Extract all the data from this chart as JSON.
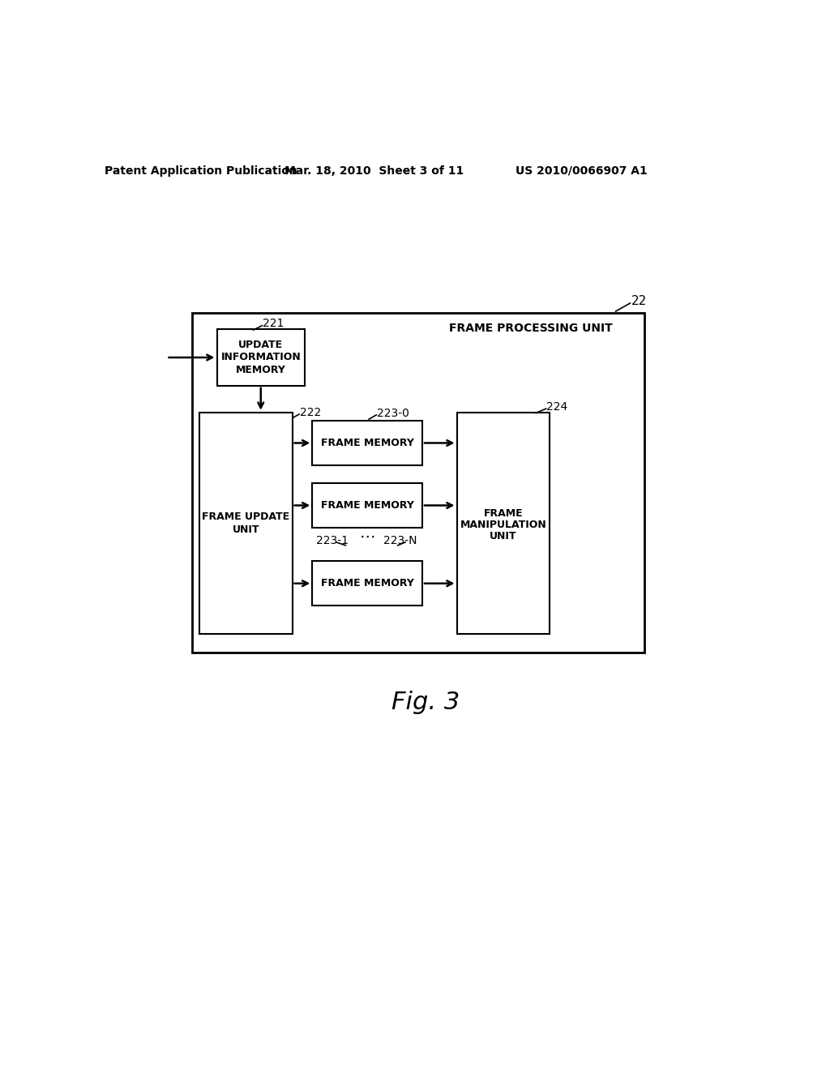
{
  "bg_color": "#ffffff",
  "header_left": "Patent Application Publication",
  "header_mid": "Mar. 18, 2010  Sheet 3 of 11",
  "header_right": "US 2010/0066907 A1",
  "fig_label": "Fig. 3",
  "outer_box_label": "FRAME PROCESSING UNIT",
  "ref_22": "22",
  "ref_221": "221",
  "ref_222": "222",
  "ref_223_0": "223-0",
  "ref_223_1": "223-1",
  "ref_223_N": "223-N",
  "ref_224": "224",
  "update_mem_lines": [
    "UPDATE",
    "INFORMATION",
    "MEMORY"
  ],
  "frame_update_lines": [
    "FRAME UPDATE",
    "UNIT"
  ],
  "frame_mem_text": "FRAME MEMORY",
  "frame_manip_lines": [
    "FRAME",
    "MANIPULATION",
    "UNIT"
  ],
  "line_color": "#000000",
  "text_color": "#000000"
}
